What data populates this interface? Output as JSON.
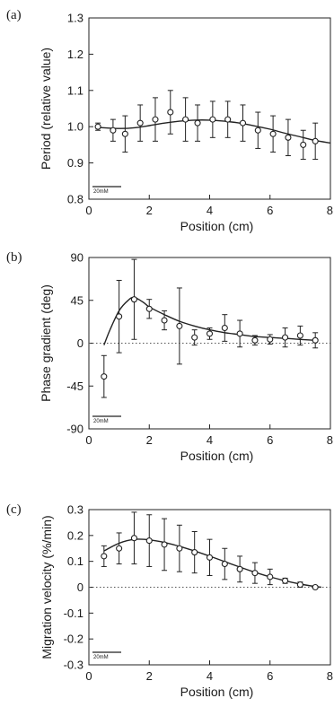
{
  "chart_data": [
    {
      "type": "scatter",
      "panel_label": "(a)",
      "xlabel": "Position (cm)",
      "ylabel": "Period (relative value)",
      "xlim": [
        0,
        8
      ],
      "ylim": [
        0.8,
        1.3
      ],
      "xticks": [
        "0",
        "2",
        "4",
        "6",
        "8"
      ],
      "yticks": [
        "0.8",
        "0.9",
        "1.0",
        "1.1",
        "1.2",
        "1.3"
      ],
      "scale_bar": "20mM",
      "reference_line": null,
      "series": [
        {
          "x": [
            0.3,
            0.8,
            1.2,
            1.7,
            2.2,
            2.7,
            3.2,
            3.6,
            4.1,
            4.6,
            5.1,
            5.6,
            6.1,
            6.6,
            7.1,
            7.5
          ],
          "y": [
            1.0,
            0.99,
            0.98,
            1.01,
            1.02,
            1.04,
            1.02,
            1.01,
            1.02,
            1.02,
            1.01,
            0.99,
            0.98,
            0.97,
            0.95,
            0.96
          ],
          "err": [
            0.01,
            0.03,
            0.05,
            0.05,
            0.06,
            0.06,
            0.06,
            0.05,
            0.05,
            0.05,
            0.05,
            0.05,
            0.05,
            0.05,
            0.04,
            0.05
          ]
        }
      ],
      "fit": {
        "x": [
          0.3,
          1.0,
          1.5,
          2.0,
          2.5,
          3.0,
          3.5,
          4.0,
          4.5,
          5.0,
          5.5,
          6.0,
          6.5,
          7.0,
          7.5,
          8.0
        ],
        "y": [
          0.998,
          0.995,
          0.997,
          1.003,
          1.01,
          1.015,
          1.018,
          1.018,
          1.015,
          1.01,
          1.002,
          0.993,
          0.982,
          0.972,
          0.962,
          0.955
        ]
      }
    },
    {
      "type": "scatter",
      "panel_label": "(b)",
      "xlabel": "Position (cm)",
      "ylabel": "Phase gradient (deg)",
      "xlim": [
        0,
        8
      ],
      "ylim": [
        -90,
        90
      ],
      "xticks": [
        "0",
        "2",
        "4",
        "6",
        "8"
      ],
      "yticks": [
        "-90",
        "-45",
        "0",
        "45",
        "90"
      ],
      "scale_bar": "20mM",
      "reference_line": 0,
      "series": [
        {
          "x": [
            0.5,
            1.0,
            1.5,
            2.0,
            2.5,
            3.0,
            3.5,
            4.0,
            4.5,
            5.0,
            5.5,
            6.0,
            6.5,
            7.0,
            7.5
          ],
          "y": [
            -35,
            28,
            46,
            36,
            24,
            18,
            6,
            10,
            16,
            10,
            3,
            4,
            6,
            8,
            3
          ],
          "err": [
            22,
            38,
            42,
            10,
            10,
            40,
            8,
            6,
            14,
            14,
            5,
            5,
            10,
            10,
            8
          ]
        }
      ],
      "fit": {
        "x": [
          0.5,
          0.7,
          1.0,
          1.3,
          1.5,
          1.8,
          2.0,
          2.5,
          3.0,
          3.5,
          4.0,
          4.5,
          5.0,
          5.5,
          6.0,
          6.5,
          7.0,
          7.5
        ],
        "y": [
          -2,
          14,
          34,
          45,
          48,
          43,
          38,
          30,
          23,
          18,
          14,
          11,
          9,
          7,
          6,
          5,
          4,
          3
        ]
      }
    },
    {
      "type": "scatter",
      "panel_label": "(c)",
      "xlabel": "Position (cm)",
      "ylabel": "Migration velocity (%/min)",
      "xlim": [
        0,
        8
      ],
      "ylim": [
        -0.3,
        0.3
      ],
      "xticks": [
        "0",
        "2",
        "4",
        "6",
        "8"
      ],
      "yticks": [
        "-0.3",
        "-0.2",
        "-0.1",
        "0",
        "0.1",
        "0.2",
        "0.3"
      ],
      "scale_bar": "20mM",
      "reference_line": 0,
      "series": [
        {
          "x": [
            0.5,
            1.0,
            1.5,
            2.0,
            2.5,
            3.0,
            3.5,
            4.0,
            4.5,
            5.0,
            5.5,
            6.0,
            6.5,
            7.0,
            7.5
          ],
          "y": [
            0.12,
            0.15,
            0.19,
            0.18,
            0.165,
            0.15,
            0.135,
            0.115,
            0.09,
            0.07,
            0.055,
            0.04,
            0.025,
            0.01,
            0.0
          ],
          "err": [
            0.04,
            0.06,
            0.1,
            0.1,
            0.1,
            0.09,
            0.08,
            0.07,
            0.06,
            0.05,
            0.04,
            0.03,
            0.01,
            0.01,
            0.005
          ]
        }
      ],
      "fit": {
        "x": [
          0.5,
          1.0,
          1.5,
          2.0,
          2.5,
          3.0,
          3.5,
          4.0,
          4.5,
          5.0,
          5.5,
          6.0,
          6.5,
          7.0,
          7.5,
          7.7
        ],
        "y": [
          0.14,
          0.17,
          0.185,
          0.183,
          0.173,
          0.158,
          0.14,
          0.12,
          0.099,
          0.078,
          0.058,
          0.04,
          0.025,
          0.012,
          0.003,
          0.0
        ]
      }
    }
  ]
}
